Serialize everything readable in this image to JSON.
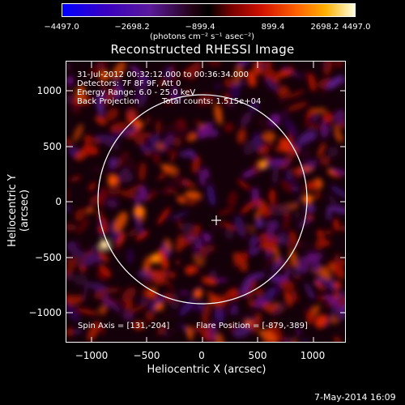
{
  "colorbar": {
    "ticks": [
      "−4497.0",
      "−2698.2",
      "−899.4",
      "899.4",
      "2698.2",
      "4497.0"
    ],
    "units_label": "(photons cm⁻² s⁻¹ asec⁻²)"
  },
  "title": "Reconstructed RHESSI Image",
  "info": {
    "time_range": "31-Jul-2012 00:32:12.000 to 00:36:34.000",
    "detectors": "Detectors: 7F 8F 9F, Att 0",
    "energy_range": "Energy Range: 6.0 - 25.0 keV",
    "method": "Back Projection",
    "total_counts": "Total counts: 1.515e+04",
    "spin_axis": "Spin Axis = [131,-204]",
    "flare_position": "Flare Position = [-879,-389]"
  },
  "axes": {
    "x_label": "Heliocentric X (arcsec)",
    "y_label": "Heliocentric Y (arcsec)",
    "x_ticks": [
      "−1000",
      "−500",
      "0",
      "500",
      "1000"
    ],
    "y_ticks": [
      "1000",
      "500",
      "0",
      "−500",
      "−1000"
    ]
  },
  "timestamp": "7-May-2014 16:09",
  "colors": {
    "background": "#000000",
    "foreground": "#ffffff"
  }
}
